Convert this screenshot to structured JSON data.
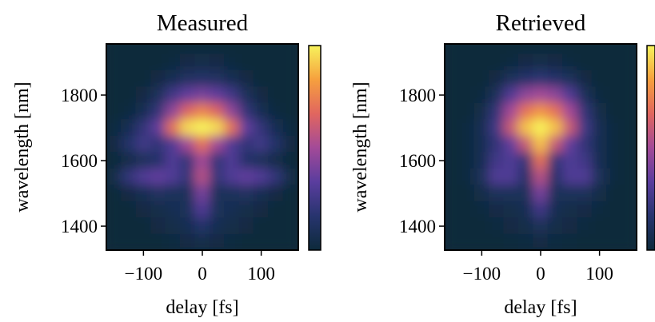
{
  "chart_data": [
    {
      "type": "heatmap",
      "title": "Measured",
      "xlabel": "delay [fs]",
      "ylabel": "wavelength [nm]",
      "x": [
        -150,
        -125,
        -100,
        -75,
        -50,
        -25,
        0,
        25,
        50,
        75,
        100,
        125,
        150
      ],
      "y": [
        1950,
        1900,
        1850,
        1800,
        1750,
        1700,
        1650,
        1600,
        1550,
        1500,
        1450,
        1400,
        1350
      ],
      "z": [
        [
          0,
          0,
          0,
          0,
          0,
          0,
          0,
          0,
          0,
          0,
          0,
          0,
          0
        ],
        [
          0,
          0,
          0,
          0,
          0.02,
          0.04,
          0.05,
          0.04,
          0.02,
          0,
          0,
          0,
          0
        ],
        [
          0,
          0,
          0,
          0.03,
          0.08,
          0.12,
          0.14,
          0.12,
          0.08,
          0.03,
          0,
          0,
          0
        ],
        [
          0,
          0,
          0.03,
          0.1,
          0.25,
          0.35,
          0.4,
          0.35,
          0.25,
          0.1,
          0.03,
          0,
          0
        ],
        [
          0,
          0.02,
          0.08,
          0.2,
          0.45,
          0.65,
          0.75,
          0.65,
          0.45,
          0.2,
          0.08,
          0.02,
          0
        ],
        [
          0.02,
          0.08,
          0.2,
          0.35,
          0.7,
          0.95,
          1,
          0.95,
          0.7,
          0.35,
          0.2,
          0.08,
          0.02
        ],
        [
          0.03,
          0.15,
          0.25,
          0.2,
          0.3,
          0.5,
          0.7,
          0.5,
          0.3,
          0.2,
          0.25,
          0.15,
          0.03
        ],
        [
          0,
          0.05,
          0.1,
          0.15,
          0.3,
          0.2,
          0.5,
          0.2,
          0.3,
          0.15,
          0.1,
          0.05,
          0
        ],
        [
          0.05,
          0.2,
          0.3,
          0.35,
          0.3,
          0.2,
          0.55,
          0.2,
          0.3,
          0.35,
          0.3,
          0.2,
          0.05
        ],
        [
          0,
          0.03,
          0.08,
          0.12,
          0.1,
          0.1,
          0.4,
          0.1,
          0.1,
          0.12,
          0.08,
          0.03,
          0
        ],
        [
          0,
          0,
          0.03,
          0.05,
          0.08,
          0.1,
          0.3,
          0.1,
          0.08,
          0.05,
          0.03,
          0,
          0
        ],
        [
          0,
          0,
          0,
          0.03,
          0.05,
          0.08,
          0.15,
          0.08,
          0.05,
          0.03,
          0,
          0,
          0
        ],
        [
          0,
          0,
          0,
          0,
          0.02,
          0.03,
          0.05,
          0.03,
          0.02,
          0,
          0,
          0,
          0
        ]
      ],
      "zlim": [
        0,
        1
      ],
      "colormap": [
        "#0d2a3b",
        "#27346e",
        "#5a3d9e",
        "#a34a98",
        "#e1665f",
        "#f6a03e",
        "#f7f35c"
      ],
      "xlim": [
        -163,
        163
      ],
      "ylim": [
        1327,
        1956
      ],
      "xticks": [
        {
          "value": -100,
          "label": "−100"
        },
        0,
        100
      ],
      "yticks": [
        1400,
        1600,
        1800
      ]
    },
    {
      "type": "heatmap",
      "title": "Retrieved",
      "xlabel": "delay [fs]",
      "ylabel": "wavelength [nm]",
      "x": [
        -150,
        -125,
        -100,
        -75,
        -50,
        -25,
        0,
        25,
        50,
        75,
        100,
        125,
        150
      ],
      "y": [
        1950,
        1900,
        1850,
        1800,
        1750,
        1700,
        1650,
        1600,
        1550,
        1500,
        1450,
        1400,
        1350
      ],
      "z": [
        [
          0,
          0,
          0,
          0,
          0,
          0,
          0,
          0,
          0,
          0,
          0,
          0,
          0
        ],
        [
          0,
          0,
          0,
          0,
          0.02,
          0.04,
          0.05,
          0.04,
          0.02,
          0,
          0,
          0,
          0
        ],
        [
          0,
          0,
          0,
          0.03,
          0.1,
          0.15,
          0.18,
          0.15,
          0.1,
          0.03,
          0,
          0,
          0
        ],
        [
          0,
          0,
          0.02,
          0.1,
          0.3,
          0.45,
          0.5,
          0.45,
          0.3,
          0.1,
          0.02,
          0,
          0
        ],
        [
          0,
          0,
          0.05,
          0.2,
          0.5,
          0.7,
          0.8,
          0.7,
          0.5,
          0.2,
          0.05,
          0,
          0
        ],
        [
          0,
          0.02,
          0.08,
          0.25,
          0.6,
          0.9,
          1,
          0.9,
          0.6,
          0.25,
          0.08,
          0.02,
          0
        ],
        [
          0,
          0.02,
          0.08,
          0.2,
          0.35,
          0.6,
          0.9,
          0.6,
          0.35,
          0.2,
          0.08,
          0.02,
          0
        ],
        [
          0,
          0.02,
          0.08,
          0.25,
          0.3,
          0.2,
          0.7,
          0.2,
          0.3,
          0.25,
          0.08,
          0.02,
          0
        ],
        [
          0,
          0.02,
          0.1,
          0.3,
          0.3,
          0.15,
          0.55,
          0.15,
          0.3,
          0.3,
          0.1,
          0.02,
          0
        ],
        [
          0,
          0,
          0.05,
          0.1,
          0.1,
          0.1,
          0.4,
          0.1,
          0.1,
          0.1,
          0.05,
          0,
          0
        ],
        [
          0,
          0,
          0.02,
          0.04,
          0.05,
          0.08,
          0.25,
          0.08,
          0.05,
          0.04,
          0.02,
          0,
          0
        ],
        [
          0,
          0,
          0,
          0.02,
          0.03,
          0.05,
          0.1,
          0.05,
          0.03,
          0.02,
          0,
          0,
          0
        ],
        [
          0,
          0,
          0,
          0,
          0.01,
          0.02,
          0.03,
          0.02,
          0.01,
          0,
          0,
          0,
          0
        ]
      ],
      "zlim": [
        0,
        1
      ],
      "colormap": [
        "#0d2a3b",
        "#27346e",
        "#5a3d9e",
        "#a34a98",
        "#e1665f",
        "#f6a03e",
        "#f7f35c"
      ],
      "xlim": [
        -163,
        163
      ],
      "ylim": [
        1327,
        1956
      ],
      "xticks": [
        {
          "value": -100,
          "label": "−100"
        },
        0,
        100
      ],
      "yticks": [
        1400,
        1600,
        1800
      ]
    }
  ]
}
